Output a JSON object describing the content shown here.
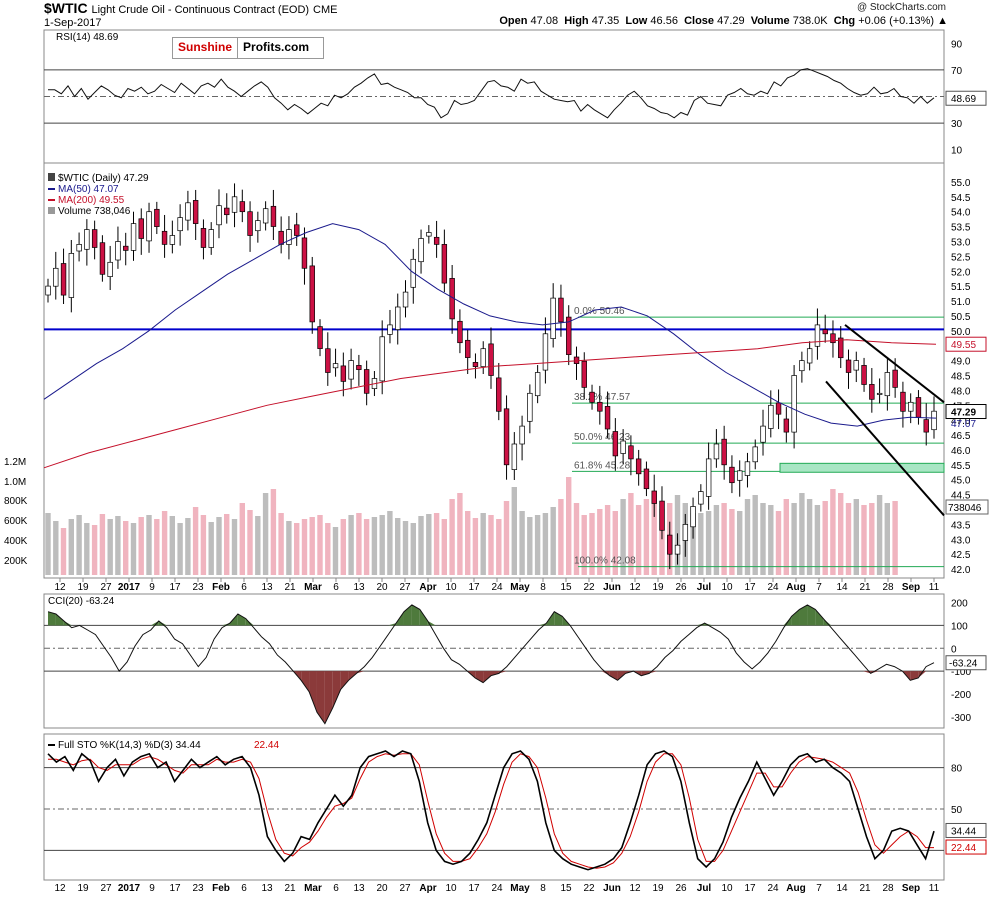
{
  "header": {
    "symbol": "$WTIC",
    "name": "Light Crude Oil - Continuous Contract (EOD)",
    "exchange": "CME",
    "date": "1-Sep-2017",
    "open_label": "Open",
    "open": "47.08",
    "high_label": "High",
    "high": "47.35",
    "low_label": "Low",
    "low": "46.56",
    "close_label": "Close",
    "close": "47.29",
    "volume_label": "Volume",
    "volume": "738.0K",
    "chg_label": "Chg",
    "chg": "+0.06 (+0.13%)",
    "copyright": "@ StockCharts.com"
  },
  "logo": {
    "part1": "Sunshine",
    "part2": "Profits.com"
  },
  "colors": {
    "up": "#ffffff",
    "down": "#cc1144",
    "ma50": "#1a1a8c",
    "ma200": "#c4102a",
    "resistance": "#0000cc",
    "fib": "#22aa55",
    "vol_up": "#bdbdbd",
    "vol_down": "#f0b4bf",
    "cci_pos": "#4e7a3c",
    "cci_neg": "#8b3a3a",
    "sto_k": "#000000",
    "sto_d": "#d00000"
  },
  "chart_data": [
    {
      "type": "line",
      "panel": "rsi",
      "legend": "RSI(14) 48.69",
      "last_value": "48.69",
      "ylim": [
        0,
        100
      ],
      "ticks": [
        "90",
        "70",
        "50",
        "30",
        "10"
      ],
      "values": [
        55,
        55,
        52,
        58,
        50,
        56,
        48,
        53,
        58,
        55,
        51,
        49,
        56,
        54,
        57,
        52,
        54,
        59,
        56,
        53,
        60,
        56,
        52,
        58,
        60,
        57,
        63,
        57,
        54,
        50,
        54,
        58,
        61,
        57,
        49,
        45,
        40,
        44,
        41,
        37,
        41,
        45,
        43,
        51,
        49,
        52,
        57,
        60,
        64,
        67,
        59,
        60,
        57,
        55,
        53,
        49,
        49,
        44,
        42,
        34,
        37,
        47,
        44,
        45,
        47,
        54,
        61,
        62,
        58,
        57,
        54,
        63,
        60,
        61,
        54,
        51,
        48,
        47,
        46,
        47,
        39,
        44,
        40,
        37,
        34,
        40,
        45,
        51,
        54,
        49,
        43,
        41,
        38,
        37,
        34,
        38,
        36,
        47,
        50,
        45,
        44,
        43,
        51,
        53,
        56,
        52,
        51,
        54,
        52,
        61,
        58,
        64,
        66,
        70,
        71,
        69,
        67,
        65,
        62,
        60,
        56,
        53,
        51,
        52,
        57,
        52,
        53,
        56,
        50,
        49,
        45,
        50,
        45,
        49
      ]
    },
    {
      "type": "candlestick",
      "panel": "price",
      "legend_title": "$WTIC (Daily) 47.29",
      "legend_ma50": "MA(50) 47.07",
      "legend_ma200": "MA(200) 49.55",
      "legend_volume": "Volume 738,046",
      "ylim": [
        41.8,
        55.4
      ],
      "ticks": [
        "55.0",
        "54.5",
        "54.0",
        "53.5",
        "53.0",
        "52.5",
        "52.0",
        "51.5",
        "51.0",
        "50.5",
        "50.0",
        "49.5",
        "49.0",
        "48.5",
        "48.0",
        "47.5",
        "47.0",
        "46.5",
        "46.0",
        "45.5",
        "45.0",
        "44.5",
        "44.0",
        "43.5",
        "43.0",
        "42.5",
        "42.0"
      ],
      "x_labels": [
        "12",
        "19",
        "27",
        "2017",
        "9",
        "17",
        "23",
        "Feb",
        "6",
        "13",
        "21",
        "Mar",
        "6",
        "13",
        "20",
        "27",
        "Apr",
        "10",
        "17",
        "24",
        "May",
        "8",
        "15",
        "22",
        "Jun",
        "12",
        "19",
        "26",
        "Jul",
        "10",
        "17",
        "24",
        "Aug",
        "7",
        "14",
        "21",
        "28",
        "Sep",
        "11"
      ],
      "close": [
        51.5,
        52.1,
        51.2,
        52.6,
        52.9,
        53.4,
        52.8,
        51.9,
        52.3,
        53.0,
        52.7,
        53.6,
        53.1,
        54.0,
        53.5,
        52.9,
        53.2,
        53.8,
        54.3,
        53.6,
        52.8,
        53.4,
        54.2,
        53.9,
        54.5,
        54.0,
        53.2,
        53.7,
        54.1,
        53.5,
        52.9,
        53.4,
        53.2,
        52.1,
        50.3,
        49.4,
        48.6,
        48.9,
        48.3,
        49.0,
        48.7,
        47.9,
        48.4,
        49.8,
        50.2,
        50.8,
        51.3,
        52.4,
        53.1,
        53.3,
        52.9,
        51.6,
        50.4,
        49.6,
        49.1,
        48.8,
        49.4,
        48.5,
        47.3,
        45.5,
        46.2,
        46.8,
        47.9,
        48.6,
        49.9,
        51.1,
        50.3,
        49.2,
        48.9,
        48.1,
        47.6,
        47.3,
        46.7,
        45.8,
        46.3,
        45.7,
        45.2,
        44.7,
        44.2,
        43.3,
        42.5,
        42.8,
        43.5,
        44.1,
        44.6,
        45.7,
        46.2,
        45.5,
        44.9,
        45.3,
        45.6,
        46.1,
        46.8,
        47.5,
        47.2,
        46.6,
        48.5,
        49.0,
        49.4,
        50.2,
        49.9,
        49.6,
        49.1,
        48.6,
        49.0,
        48.2,
        47.7,
        47.9,
        48.6,
        48.1,
        47.3,
        47.6,
        47.1,
        46.6,
        47.3
      ],
      "ma50": [
        47.7,
        48.3,
        48.9,
        49.4,
        50.0,
        50.7,
        51.3,
        51.9,
        52.4,
        52.9,
        53.3,
        53.6,
        53.4,
        52.9,
        52.0,
        51.4,
        50.9,
        50.5,
        50.3,
        50.2,
        50.3,
        50.7,
        50.8,
        50.5,
        49.9,
        49.2,
        48.6,
        48.1,
        47.6,
        47.2,
        46.9,
        46.8,
        47.0,
        47.1,
        47.07
      ],
      "ma200": [
        45.4,
        45.9,
        46.3,
        46.7,
        47.1,
        47.5,
        47.8,
        48.1,
        48.4,
        48.6,
        48.8,
        48.9,
        49.0,
        49.1,
        49.2,
        49.3,
        49.4,
        49.6,
        49.7,
        49.6,
        49.55
      ]
    },
    {
      "type": "line",
      "panel": "cci",
      "legend": "CCI(20) -63.24",
      "last_value": "-63.24",
      "ylim": [
        -340,
        220
      ],
      "ticks": [
        "200",
        "100",
        "0",
        "-100",
        "-200",
        "-300"
      ],
      "values": [
        160,
        150,
        120,
        90,
        100,
        80,
        60,
        10,
        -40,
        -100,
        -60,
        10,
        60,
        80,
        120,
        90,
        40,
        20,
        -30,
        -80,
        -40,
        40,
        90,
        110,
        150,
        130,
        90,
        50,
        20,
        -30,
        -60,
        -100,
        -140,
        -190,
        -280,
        -330,
        -260,
        -180,
        -140,
        -110,
        -80,
        -40,
        10,
        60,
        110,
        160,
        190,
        170,
        120,
        60,
        0,
        -50,
        -70,
        -100,
        -130,
        -150,
        -120,
        -110,
        -80,
        -40,
        0,
        40,
        80,
        110,
        160,
        140,
        100,
        50,
        0,
        -50,
        -90,
        -120,
        -140,
        -110,
        -100,
        -120,
        -110,
        -80,
        -40,
        -10,
        30,
        60,
        90,
        110,
        90,
        70,
        40,
        -20,
        -60,
        -90,
        -60,
        -20,
        30,
        90,
        140,
        170,
        190,
        170,
        130,
        90,
        50,
        10,
        -30,
        -70,
        -110,
        -90,
        -70,
        -80,
        -100,
        -140,
        -130,
        -80,
        -63
      ]
    },
    {
      "type": "line",
      "panel": "stochastic",
      "legend_k": "Full STO %K(14,3) %D(3) 34.44",
      "legend_d": "22.44",
      "k_value": "34.44",
      "d_value": "22.44",
      "ylim": [
        0,
        100
      ],
      "ticks": [
        "80",
        "50",
        "20"
      ],
      "k": [
        90,
        84,
        88,
        78,
        90,
        85,
        70,
        80,
        86,
        74,
        84,
        88,
        90,
        80,
        84,
        70,
        78,
        86,
        80,
        84,
        88,
        82,
        86,
        88,
        80,
        60,
        30,
        20,
        12,
        18,
        30,
        28,
        40,
        50,
        60,
        52,
        60,
        80,
        88,
        90,
        92,
        88,
        92,
        90,
        70,
        40,
        20,
        12,
        10,
        12,
        18,
        28,
        40,
        60,
        80,
        90,
        92,
        86,
        70,
        40,
        20,
        14,
        10,
        8,
        6,
        8,
        10,
        14,
        22,
        40,
        60,
        82,
        90,
        92,
        88,
        70,
        40,
        14,
        8,
        14,
        26,
        44,
        58,
        70,
        84,
        72,
        60,
        70,
        82,
        88,
        90,
        84,
        86,
        80,
        76,
        70,
        50,
        30,
        14,
        20,
        34,
        36,
        34,
        24,
        14,
        34
      ],
      "d": [
        86,
        86,
        84,
        82,
        85,
        86,
        80,
        78,
        82,
        82,
        82,
        86,
        88,
        86,
        82,
        78,
        76,
        82,
        82,
        82,
        86,
        84,
        84,
        86,
        84,
        72,
        48,
        28,
        18,
        16,
        22,
        26,
        34,
        44,
        52,
        54,
        58,
        72,
        84,
        88,
        90,
        89,
        90,
        90,
        82,
        56,
        32,
        18,
        12,
        12,
        14,
        22,
        32,
        48,
        68,
        84,
        90,
        88,
        80,
        58,
        32,
        18,
        12,
        10,
        8,
        7,
        8,
        11,
        18,
        30,
        48,
        70,
        84,
        90,
        90,
        82,
        58,
        28,
        12,
        12,
        20,
        34,
        48,
        62,
        76,
        76,
        66,
        66,
        76,
        84,
        88,
        87,
        86,
        84,
        80,
        76,
        62,
        42,
        24,
        18,
        24,
        30,
        34,
        30,
        22,
        22
      ]
    }
  ]
}
